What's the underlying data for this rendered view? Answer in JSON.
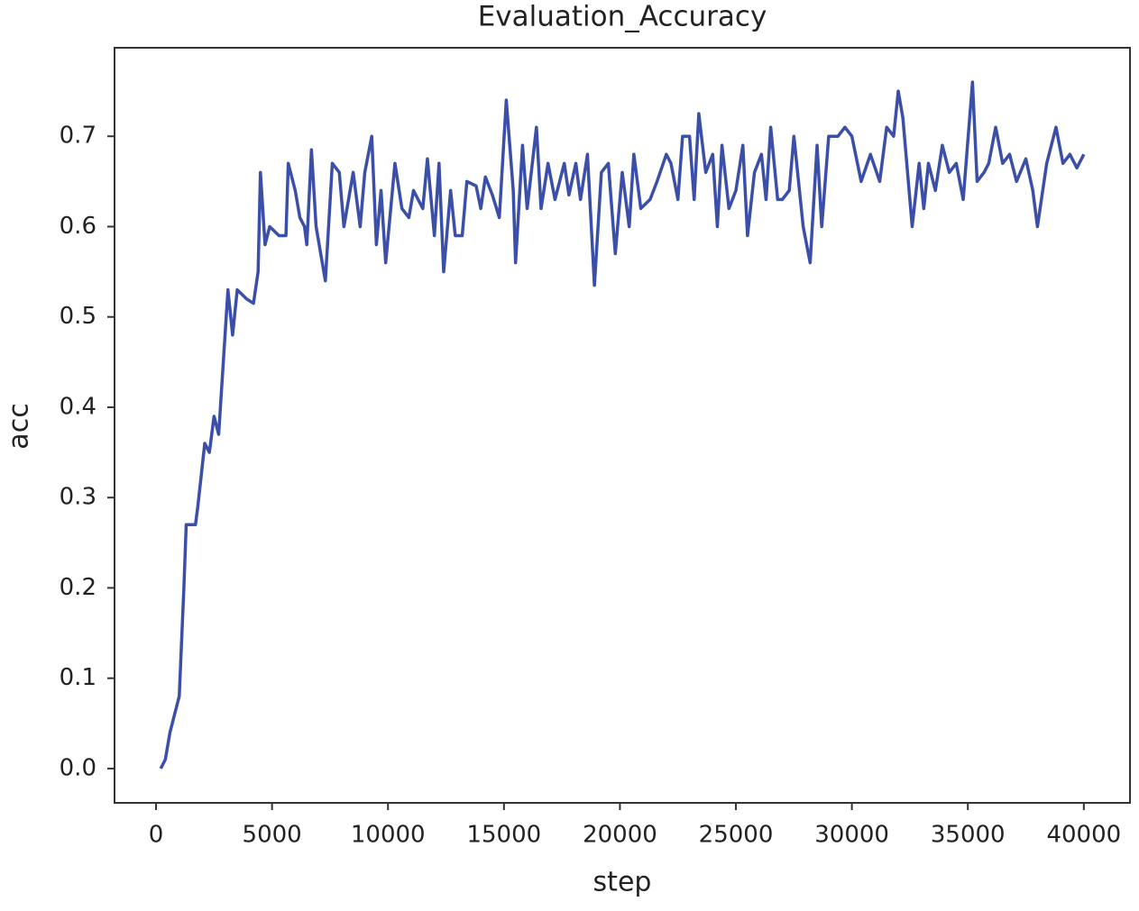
{
  "chart_data": {
    "type": "line",
    "title": "Evaluation_Accuracy",
    "x_label": "step",
    "y_label": "acc",
    "x": [
      200,
      400,
      600,
      900,
      1000,
      1200,
      1300,
      1700,
      1800,
      2100,
      2300,
      2500,
      2700,
      2900,
      3100,
      3300,
      3500,
      3900,
      4200,
      4400,
      4500,
      4700,
      4900,
      5300,
      5600,
      5700,
      6000,
      6200,
      6400,
      6500,
      6700,
      6900,
      7100,
      7300,
      7600,
      7900,
      8100,
      8500,
      8800,
      9000,
      9300,
      9500,
      9700,
      9900,
      10300,
      10600,
      10900,
      11100,
      11500,
      11700,
      12000,
      12200,
      12400,
      12700,
      12900,
      13200,
      13400,
      13800,
      14000,
      14200,
      14500,
      14800,
      15100,
      15400,
      15500,
      15800,
      16000,
      16400,
      16600,
      16900,
      17200,
      17600,
      17800,
      18100,
      18300,
      18600,
      18900,
      19200,
      19500,
      19800,
      20100,
      20400,
      20600,
      20900,
      21300,
      21600,
      22000,
      22200,
      22500,
      22700,
      23000,
      23200,
      23400,
      23700,
      24000,
      24200,
      24400,
      24700,
      25000,
      25300,
      25500,
      25800,
      26100,
      26300,
      26500,
      26800,
      27000,
      27300,
      27500,
      27900,
      28200,
      28500,
      28700,
      29000,
      29400,
      29700,
      30000,
      30400,
      30800,
      31200,
      31500,
      31800,
      32000,
      32200,
      32600,
      32900,
      33100,
      33300,
      33600,
      33900,
      34200,
      34500,
      34800,
      35200,
      35400,
      35700,
      35900,
      36200,
      36500,
      36800,
      37100,
      37500,
      37800,
      38000,
      38400,
      38800,
      39100,
      39400,
      39700,
      40000
    ],
    "series": [
      {
        "name": "acc",
        "color": "#3b4fa8",
        "values": [
          0.0,
          0.01,
          0.04,
          0.07,
          0.08,
          0.2,
          0.27,
          0.27,
          0.29,
          0.36,
          0.35,
          0.39,
          0.37,
          0.45,
          0.53,
          0.48,
          0.53,
          0.52,
          0.515,
          0.55,
          0.66,
          0.58,
          0.6,
          0.59,
          0.59,
          0.67,
          0.64,
          0.61,
          0.6,
          0.58,
          0.685,
          0.6,
          0.57,
          0.54,
          0.67,
          0.66,
          0.6,
          0.66,
          0.6,
          0.66,
          0.7,
          0.58,
          0.64,
          0.56,
          0.67,
          0.62,
          0.61,
          0.64,
          0.62,
          0.675,
          0.59,
          0.67,
          0.55,
          0.64,
          0.59,
          0.59,
          0.65,
          0.645,
          0.62,
          0.655,
          0.635,
          0.61,
          0.74,
          0.64,
          0.56,
          0.69,
          0.62,
          0.71,
          0.62,
          0.67,
          0.63,
          0.67,
          0.635,
          0.67,
          0.63,
          0.68,
          0.535,
          0.66,
          0.67,
          0.57,
          0.66,
          0.6,
          0.68,
          0.62,
          0.63,
          0.65,
          0.68,
          0.67,
          0.63,
          0.7,
          0.7,
          0.63,
          0.725,
          0.66,
          0.68,
          0.6,
          0.69,
          0.62,
          0.64,
          0.69,
          0.59,
          0.66,
          0.68,
          0.63,
          0.71,
          0.63,
          0.63,
          0.64,
          0.7,
          0.6,
          0.56,
          0.69,
          0.6,
          0.7,
          0.7,
          0.71,
          0.7,
          0.65,
          0.68,
          0.65,
          0.71,
          0.7,
          0.75,
          0.72,
          0.6,
          0.67,
          0.62,
          0.67,
          0.64,
          0.69,
          0.66,
          0.67,
          0.63,
          0.76,
          0.65,
          0.66,
          0.67,
          0.71,
          0.67,
          0.68,
          0.65,
          0.675,
          0.64,
          0.6,
          0.67,
          0.71,
          0.67,
          0.68,
          0.665,
          0.68
        ]
      }
    ],
    "xlim": [
      -1790,
      41990
    ],
    "ylim": [
      -0.038,
      0.798
    ],
    "xticks": [
      0,
      5000,
      10000,
      15000,
      20000,
      25000,
      30000,
      35000,
      40000
    ],
    "yticks": [
      {
        "value": 0,
        "label": "0.0"
      },
      0.1,
      0.2,
      0.3,
      0.4,
      0.5,
      0.6,
      0.7
    ]
  }
}
